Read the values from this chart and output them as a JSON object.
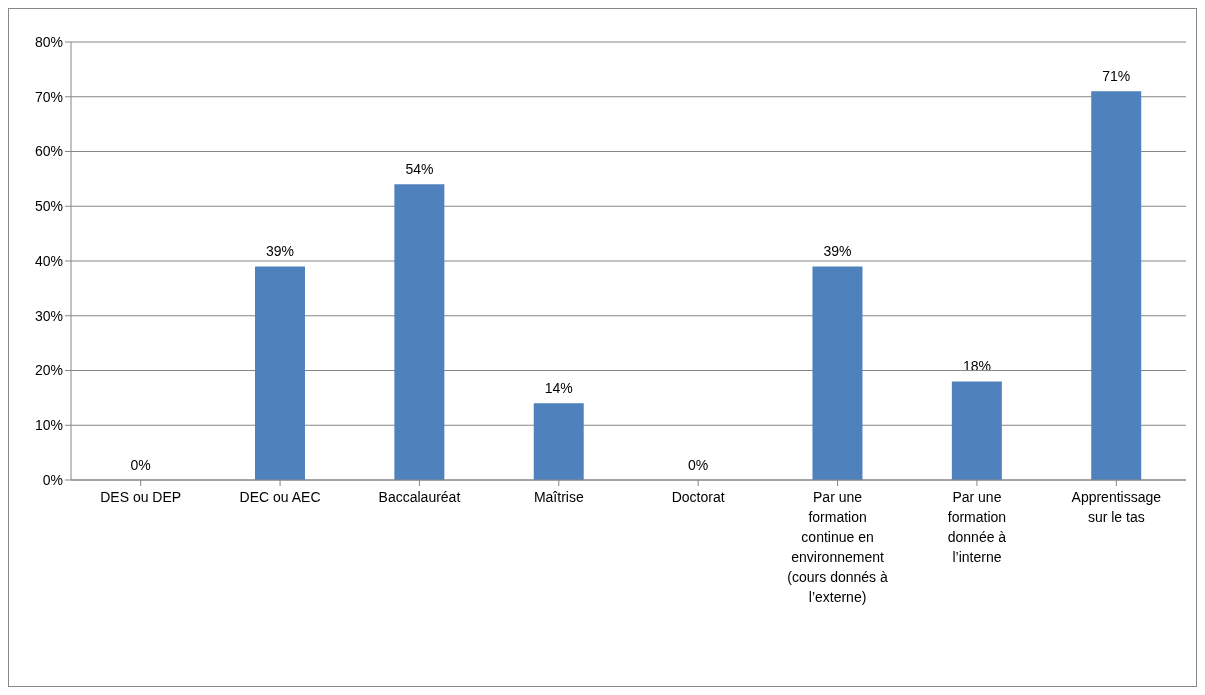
{
  "chart_data": {
    "type": "bar",
    "categories": [
      "DES ou DEP",
      "DEC ou AEC",
      "Baccalauréat",
      "Maîtrise",
      "Doctorat",
      "Par une formation continue en environnement (cours donnés à l’externe)",
      "Par une formation donnée à l’interne",
      "Apprentissage sur le tas"
    ],
    "values": [
      0,
      39,
      54,
      14,
      0,
      39,
      18,
      71
    ],
    "value_labels": [
      "0%",
      "39%",
      "54%",
      "14%",
      "0%",
      "39%",
      "18%",
      "71%"
    ],
    "color": "#4f81bd",
    "ylim": [
      0,
      80
    ],
    "yticks": [
      {
        "value": 0,
        "label": "0%"
      },
      {
        "value": 10,
        "label": "10%"
      },
      {
        "value": 20,
        "label": "20%"
      },
      {
        "value": 30,
        "label": "30%"
      },
      {
        "value": 40,
        "label": "40%"
      },
      {
        "value": 50,
        "label": "50%"
      },
      {
        "value": 60,
        "label": "60%"
      },
      {
        "value": 70,
        "label": "70%"
      },
      {
        "value": 80,
        "label": "80%"
      }
    ],
    "grid": "y"
  }
}
